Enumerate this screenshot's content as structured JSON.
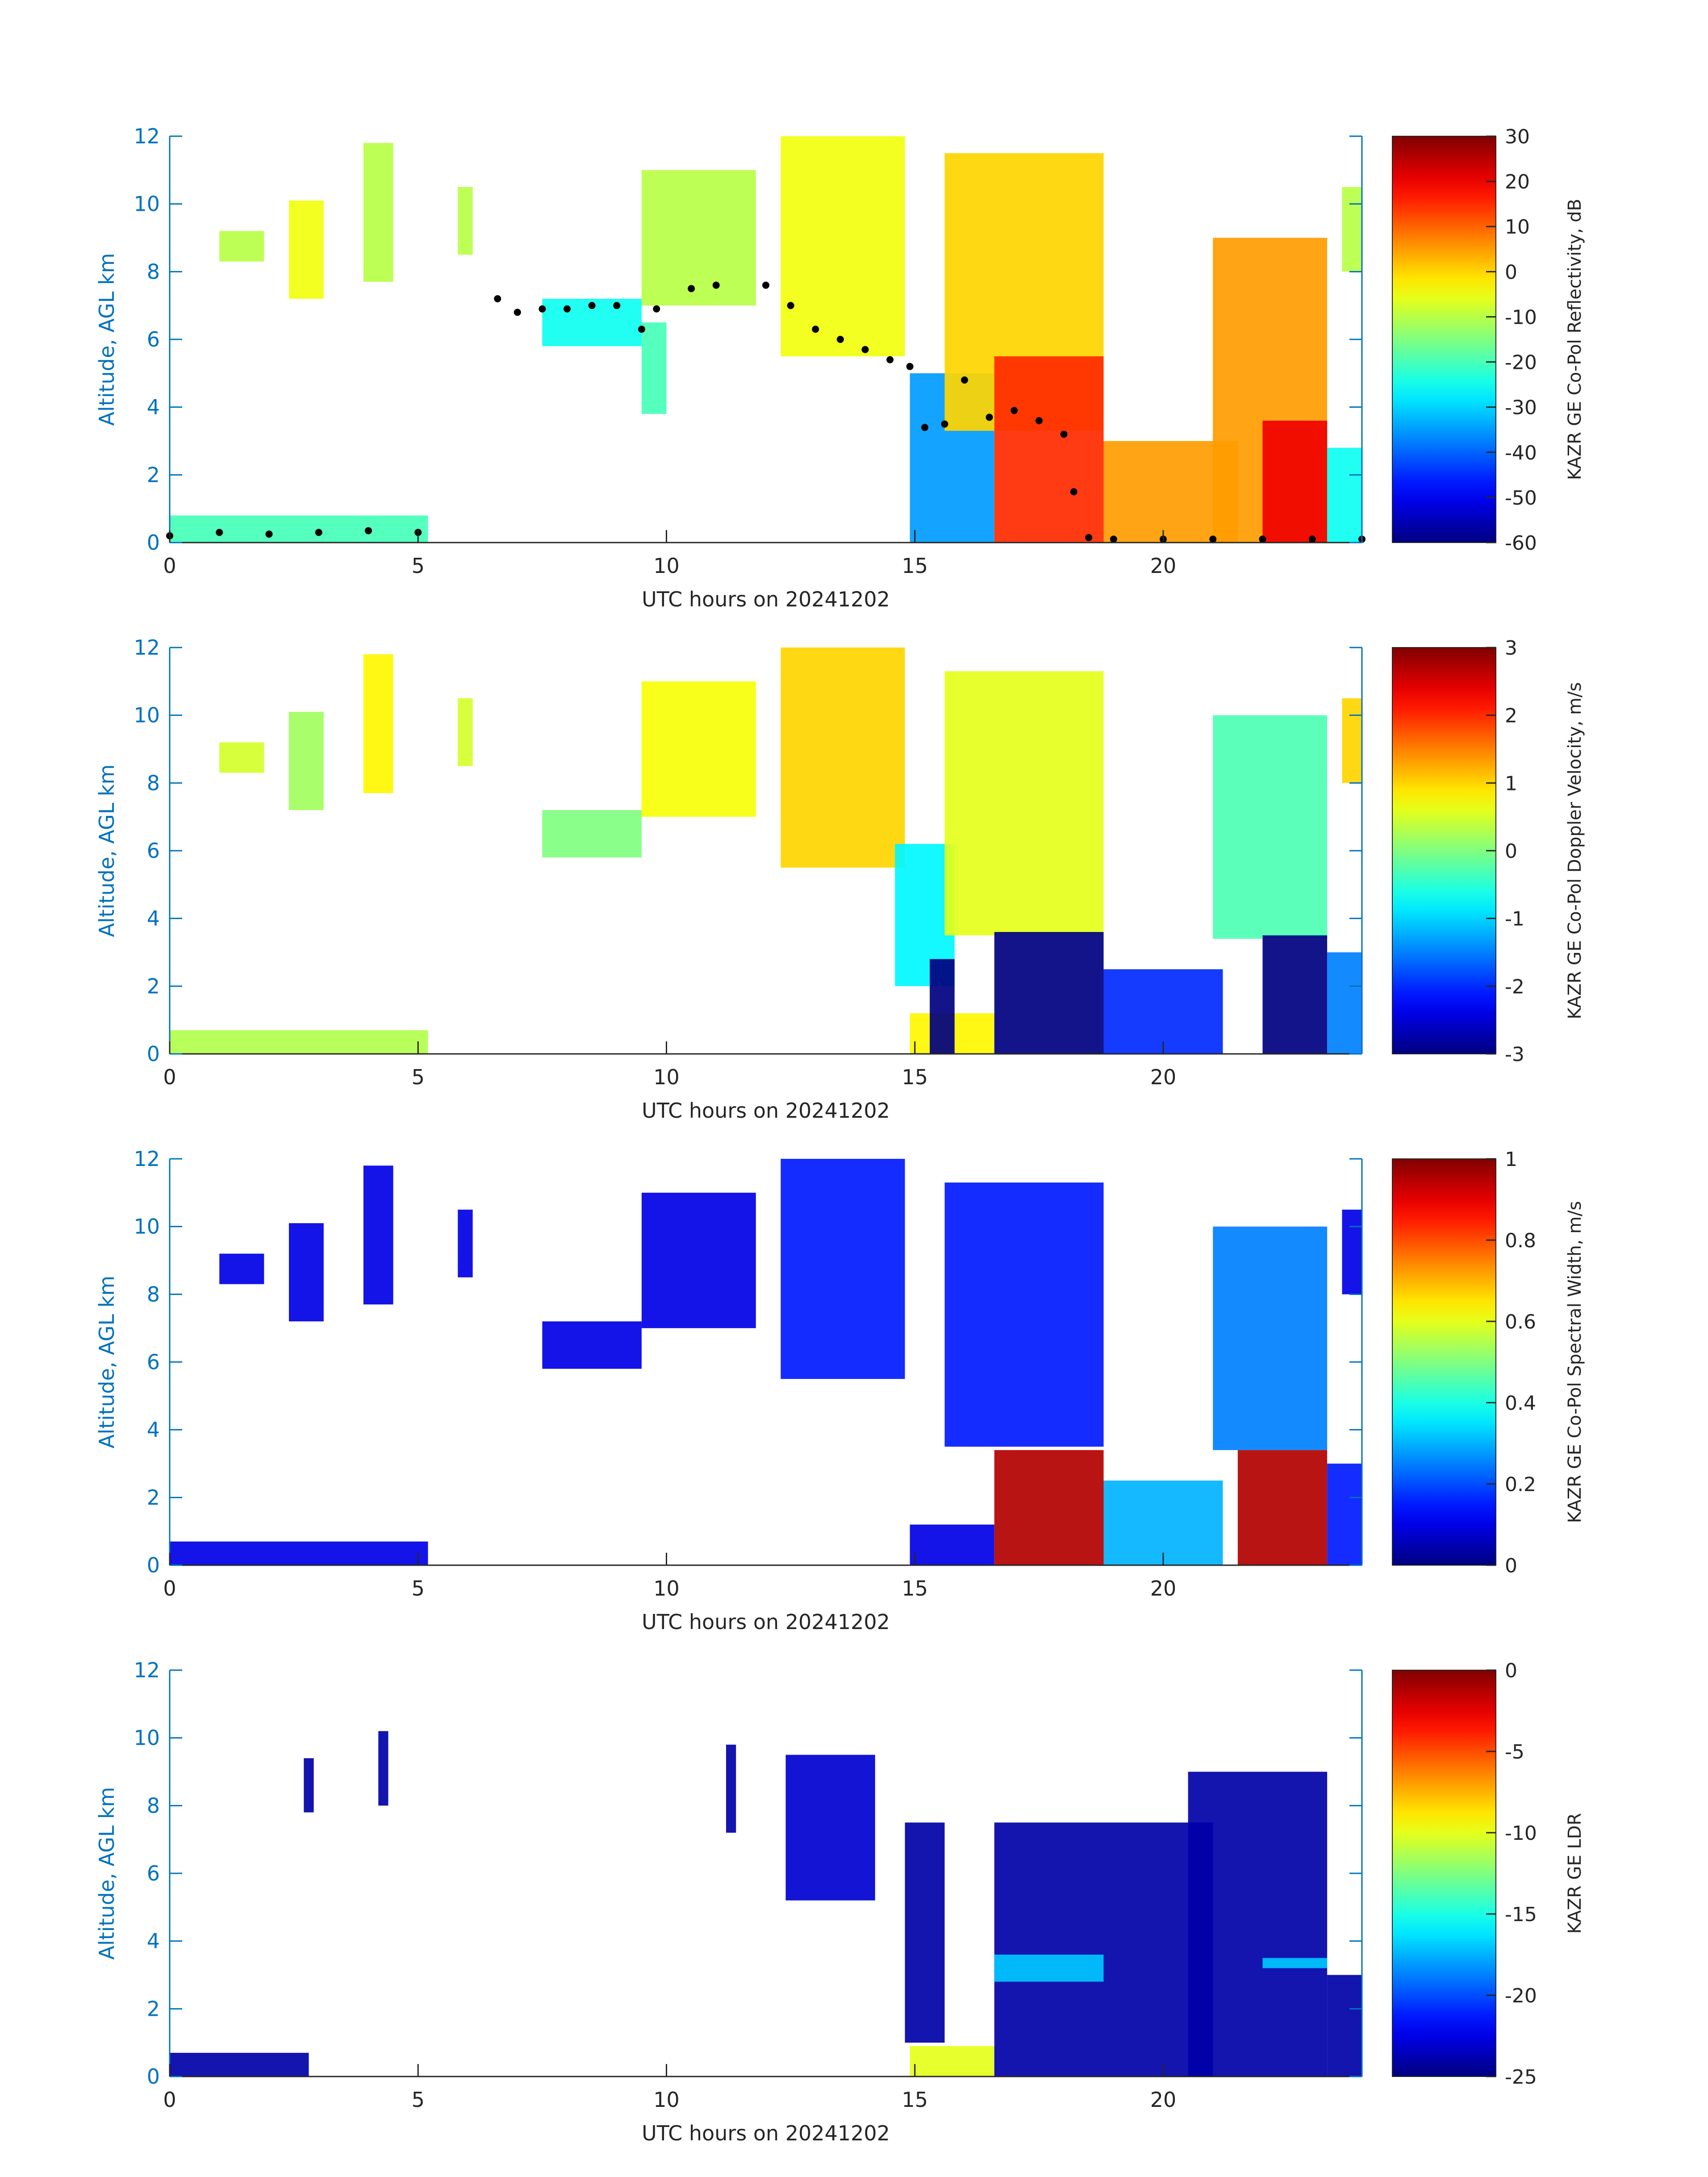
{
  "chart_data": [
    {
      "type": "heatmap",
      "xlabel": "UTC hours on 20241202",
      "ylabel": "Altitude, AGL km",
      "xlim": [
        0,
        24
      ],
      "ylim": [
        0,
        12
      ],
      "xticks": [
        "0",
        "5",
        "10",
        "15",
        "20"
      ],
      "yticks": [
        "0",
        "2",
        "4",
        "6",
        "8",
        "10",
        "12"
      ],
      "colorbar": {
        "label": "KAZR GE Co-Pol Reflectivity, dB",
        "range": [
          -60,
          30
        ],
        "ticks": [
          "30",
          "20",
          "10",
          "0",
          "-10",
          "-20",
          "-30",
          "-40",
          "-50",
          "-60"
        ],
        "colormap": "jet"
      },
      "features": [
        {
          "x": [
            0.0,
            5.2
          ],
          "y": [
            0.0,
            0.8
          ],
          "value": -20
        },
        {
          "x": [
            1.0,
            1.9
          ],
          "y": [
            8.3,
            9.2
          ],
          "value": -10
        },
        {
          "x": [
            2.4,
            3.1
          ],
          "y": [
            7.2,
            10.1
          ],
          "value": -5
        },
        {
          "x": [
            3.9,
            4.5
          ],
          "y": [
            7.7,
            11.8
          ],
          "value": -10
        },
        {
          "x": [
            5.8,
            6.1
          ],
          "y": [
            8.5,
            10.5
          ],
          "value": -10
        },
        {
          "x": [
            7.5,
            9.5
          ],
          "y": [
            5.8,
            7.2
          ],
          "value": -25
        },
        {
          "x": [
            9.5,
            10.0
          ],
          "y": [
            3.8,
            6.5
          ],
          "value": -20
        },
        {
          "x": [
            9.5,
            11.8
          ],
          "y": [
            7.0,
            11.0
          ],
          "value": -10
        },
        {
          "x": [
            12.3,
            14.8
          ],
          "y": [
            5.5,
            12.0
          ],
          "value": -5
        },
        {
          "x": [
            14.9,
            16.6
          ],
          "y": [
            0.0,
            5.0
          ],
          "value": -35
        },
        {
          "x": [
            15.6,
            18.8
          ],
          "y": [
            3.3,
            11.5
          ],
          "value": 0
        },
        {
          "x": [
            16.6,
            18.8
          ],
          "y": [
            0.0,
            5.5
          ],
          "value": 15
        },
        {
          "x": [
            18.8,
            21.5
          ],
          "y": [
            0.0,
            3.0
          ],
          "value": 5
        },
        {
          "x": [
            21.0,
            23.3
          ],
          "y": [
            0.0,
            9.0
          ],
          "value": 5
        },
        {
          "x": [
            22.0,
            23.3
          ],
          "y": [
            0.0,
            3.6
          ],
          "value": 20
        },
        {
          "x": [
            23.3,
            24.0
          ],
          "y": [
            0.0,
            2.8
          ],
          "value": -25
        },
        {
          "x": [
            23.6,
            24.0
          ],
          "y": [
            8.0,
            10.5
          ],
          "value": -10
        }
      ],
      "overlay_points": {
        "color": "#000000",
        "x": [
          0.0,
          1.0,
          2.0,
          3.0,
          4.0,
          5.0,
          6.6,
          7.0,
          7.5,
          8.0,
          8.5,
          9.0,
          9.5,
          9.8,
          10.5,
          11.0,
          12.0,
          12.5,
          13.0,
          13.5,
          14.0,
          14.5,
          14.9,
          15.2,
          15.6,
          16.0,
          16.5,
          17.0,
          17.5,
          18.0,
          18.2,
          18.5,
          19.0,
          20.0,
          21.0,
          22.0,
          23.0,
          24.0
        ],
        "y": [
          0.2,
          0.3,
          0.25,
          0.3,
          0.35,
          0.3,
          7.2,
          6.8,
          6.9,
          6.9,
          7.0,
          7.0,
          6.3,
          6.9,
          7.5,
          7.6,
          7.6,
          7.0,
          6.3,
          6.0,
          5.7,
          5.4,
          5.2,
          3.4,
          3.5,
          4.8,
          3.7,
          3.9,
          3.6,
          3.2,
          1.5,
          0.15,
          0.1,
          0.1,
          0.1,
          0.1,
          0.1,
          0.1
        ]
      }
    },
    {
      "type": "heatmap",
      "xlabel": "UTC hours on 20241202",
      "ylabel": "Altitude, AGL km",
      "xlim": [
        0,
        24
      ],
      "ylim": [
        0,
        12
      ],
      "xticks": [
        "0",
        "5",
        "10",
        "15",
        "20"
      ],
      "yticks": [
        "0",
        "2",
        "4",
        "6",
        "8",
        "10",
        "12"
      ],
      "colorbar": {
        "label": "KAZR GE Co-Pol Doppler Velocity, m/s",
        "range": [
          -3,
          3
        ],
        "ticks": [
          "3",
          "2",
          "1",
          "0",
          "-1",
          "-2",
          "-3"
        ],
        "colormap": "jet"
      },
      "features": [
        {
          "x": [
            0.0,
            5.2
          ],
          "y": [
            0.0,
            0.7
          ],
          "value": 0.3
        },
        {
          "x": [
            1.0,
            1.9
          ],
          "y": [
            8.3,
            9.2
          ],
          "value": 0.5
        },
        {
          "x": [
            2.4,
            3.1
          ],
          "y": [
            7.2,
            10.1
          ],
          "value": 0.2
        },
        {
          "x": [
            3.9,
            4.5
          ],
          "y": [
            7.7,
            11.8
          ],
          "value": 0.8
        },
        {
          "x": [
            5.8,
            6.1
          ],
          "y": [
            8.5,
            10.5
          ],
          "value": 0.5
        },
        {
          "x": [
            7.5,
            9.5
          ],
          "y": [
            5.8,
            7.2
          ],
          "value": 0.0
        },
        {
          "x": [
            9.5,
            11.8
          ],
          "y": [
            7.0,
            11.0
          ],
          "value": 0.7
        },
        {
          "x": [
            12.3,
            14.8
          ],
          "y": [
            5.5,
            12.0
          ],
          "value": 1.0
        },
        {
          "x": [
            14.6,
            15.8
          ],
          "y": [
            2.0,
            6.2
          ],
          "value": -0.8
        },
        {
          "x": [
            14.9,
            16.6
          ],
          "y": [
            0.0,
            1.2
          ],
          "value": 0.8
        },
        {
          "x": [
            15.3,
            15.8
          ],
          "y": [
            0.0,
            2.8
          ],
          "value": -3.0
        },
        {
          "x": [
            15.6,
            18.8
          ],
          "y": [
            3.5,
            11.3
          ],
          "value": 0.6
        },
        {
          "x": [
            16.6,
            18.8
          ],
          "y": [
            0.0,
            3.6
          ],
          "value": -3.0
        },
        {
          "x": [
            18.8,
            21.2
          ],
          "y": [
            0.0,
            2.5
          ],
          "value": -2.0
        },
        {
          "x": [
            21.0,
            23.3
          ],
          "y": [
            3.4,
            10.0
          ],
          "value": -0.3
        },
        {
          "x": [
            22.0,
            23.3
          ],
          "y": [
            0.0,
            3.5
          ],
          "value": -3.0
        },
        {
          "x": [
            23.3,
            24.0
          ],
          "y": [
            0.0,
            3.0
          ],
          "value": -1.5
        },
        {
          "x": [
            23.6,
            24.0
          ],
          "y": [
            8.0,
            10.5
          ],
          "value": 1.0
        }
      ]
    },
    {
      "type": "heatmap",
      "xlabel": "UTC hours on 20241202",
      "ylabel": "Altitude, AGL km",
      "xlim": [
        0,
        24
      ],
      "ylim": [
        0,
        12
      ],
      "xticks": [
        "0",
        "5",
        "10",
        "15",
        "20"
      ],
      "yticks": [
        "0",
        "2",
        "4",
        "6",
        "8",
        "10",
        "12"
      ],
      "colorbar": {
        "label": "KAZR GE Co-Pol Spectral Width, m/s",
        "range": [
          0,
          1
        ],
        "ticks": [
          "1",
          "0.8",
          "0.6",
          "0.4",
          "0.2",
          "0"
        ],
        "colormap": "jet"
      },
      "features": [
        {
          "x": [
            0.0,
            5.2
          ],
          "y": [
            0.0,
            0.7
          ],
          "value": 0.1
        },
        {
          "x": [
            1.0,
            1.9
          ],
          "y": [
            8.3,
            9.2
          ],
          "value": 0.1
        },
        {
          "x": [
            2.4,
            3.1
          ],
          "y": [
            7.2,
            10.1
          ],
          "value": 0.1
        },
        {
          "x": [
            3.9,
            4.5
          ],
          "y": [
            7.7,
            11.8
          ],
          "value": 0.1
        },
        {
          "x": [
            5.8,
            6.1
          ],
          "y": [
            8.5,
            10.5
          ],
          "value": 0.1
        },
        {
          "x": [
            7.5,
            9.5
          ],
          "y": [
            5.8,
            7.2
          ],
          "value": 0.1
        },
        {
          "x": [
            9.5,
            11.8
          ],
          "y": [
            7.0,
            11.0
          ],
          "value": 0.1
        },
        {
          "x": [
            12.3,
            14.8
          ],
          "y": [
            5.5,
            12.0
          ],
          "value": 0.15
        },
        {
          "x": [
            14.9,
            16.6
          ],
          "y": [
            0.0,
            1.2
          ],
          "value": 0.1
        },
        {
          "x": [
            15.6,
            18.8
          ],
          "y": [
            3.5,
            11.3
          ],
          "value": 0.15
        },
        {
          "x": [
            16.6,
            18.8
          ],
          "y": [
            0.0,
            3.4
          ],
          "value": 0.95
        },
        {
          "x": [
            18.8,
            21.2
          ],
          "y": [
            0.0,
            2.5
          ],
          "value": 0.3
        },
        {
          "x": [
            21.0,
            23.3
          ],
          "y": [
            3.4,
            10.0
          ],
          "value": 0.25
        },
        {
          "x": [
            21.5,
            23.3
          ],
          "y": [
            0.0,
            3.4
          ],
          "value": 0.95
        },
        {
          "x": [
            23.3,
            24.0
          ],
          "y": [
            0.0,
            3.0
          ],
          "value": 0.15
        },
        {
          "x": [
            23.6,
            24.0
          ],
          "y": [
            8.0,
            10.5
          ],
          "value": 0.1
        }
      ]
    },
    {
      "type": "heatmap",
      "xlabel": "UTC hours on 20241202",
      "ylabel": "Altitude, AGL km",
      "xlim": [
        0,
        24
      ],
      "ylim": [
        0,
        12
      ],
      "xticks": [
        "0",
        "5",
        "10",
        "15",
        "20"
      ],
      "yticks": [
        "0",
        "2",
        "4",
        "6",
        "8",
        "10",
        "12"
      ],
      "colorbar": {
        "label": "KAZR GE LDR",
        "range": [
          -25,
          0
        ],
        "ticks": [
          "0",
          "-5",
          "-10",
          "-15",
          "-20",
          "-25"
        ],
        "colormap": "jet"
      },
      "features": [
        {
          "x": [
            0.0,
            2.8
          ],
          "y": [
            0.0,
            0.7
          ],
          "value": -24
        },
        {
          "x": [
            2.7,
            2.9
          ],
          "y": [
            7.8,
            9.4
          ],
          "value": -24
        },
        {
          "x": [
            4.2,
            4.4
          ],
          "y": [
            8.0,
            10.2
          ],
          "value": -24
        },
        {
          "x": [
            11.2,
            11.4
          ],
          "y": [
            7.2,
            9.8
          ],
          "value": -24
        },
        {
          "x": [
            12.4,
            14.2
          ],
          "y": [
            5.2,
            9.5
          ],
          "value": -23
        },
        {
          "x": [
            14.9,
            16.6
          ],
          "y": [
            0.0,
            0.9
          ],
          "value": -10
        },
        {
          "x": [
            14.8,
            15.6
          ],
          "y": [
            1.0,
            7.5
          ],
          "value": -24
        },
        {
          "x": [
            16.6,
            21.0
          ],
          "y": [
            0.0,
            7.5
          ],
          "value": -24
        },
        {
          "x": [
            16.6,
            18.8
          ],
          "y": [
            2.8,
            3.6
          ],
          "value": -17
        },
        {
          "x": [
            20.5,
            23.3
          ],
          "y": [
            0.0,
            9.0
          ],
          "value": -24
        },
        {
          "x": [
            22.0,
            23.3
          ],
          "y": [
            3.2,
            3.5
          ],
          "value": -17
        },
        {
          "x": [
            23.3,
            24.0
          ],
          "y": [
            0.0,
            3.0
          ],
          "value": -24
        }
      ]
    }
  ]
}
